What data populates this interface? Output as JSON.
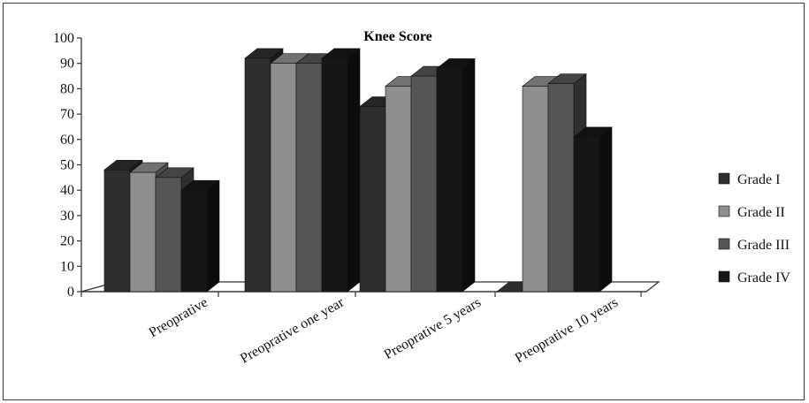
{
  "chart_data": {
    "type": "bar",
    "title": "Knee Score",
    "categories": [
      "Preoprative",
      "Preoprative one year",
      "Preoprative 5 years",
      "Preoprative 10 years"
    ],
    "series": [
      {
        "name": "Grade I",
        "color": "#2e2e2e",
        "values": [
          48,
          92,
          73,
          0
        ]
      },
      {
        "name": "Grade II",
        "color": "#8e8e8e",
        "values": [
          47,
          90,
          81,
          81
        ]
      },
      {
        "name": "Grade III",
        "color": "#555555",
        "values": [
          45,
          90,
          85,
          82
        ]
      },
      {
        "name": "Grade IV",
        "color": "#161616",
        "values": [
          40,
          92,
          88,
          61
        ]
      }
    ],
    "ylim": [
      0,
      100
    ],
    "yticks": [
      0,
      10,
      20,
      30,
      40,
      50,
      60,
      70,
      80,
      90,
      100
    ],
    "legend_position": "right",
    "grid": false
  }
}
